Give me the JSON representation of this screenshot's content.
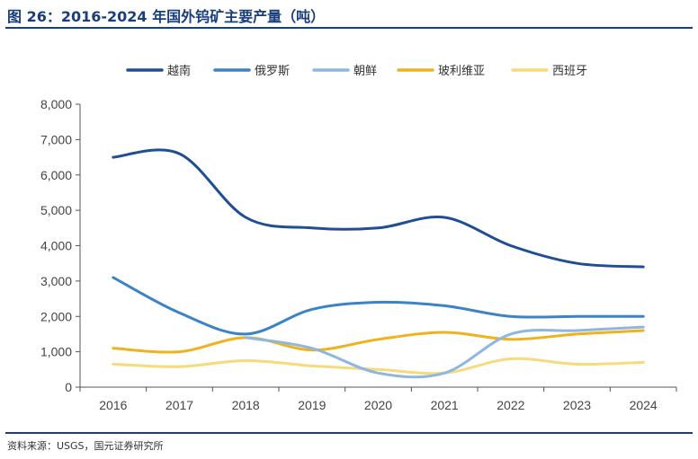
{
  "title": "图 26：2016-2024 年国外钨矿主要产量（吨）",
  "source": "资料来源：USGS，国元证券研究所",
  "colors": {
    "accent": "#1a3e7a"
  },
  "chart_data": {
    "type": "line",
    "title": "图 26：2016-2024 年国外钨矿主要产量（吨）",
    "xlabel": "",
    "ylabel": "",
    "x": [
      "2016",
      "2017",
      "2018",
      "2019",
      "2020",
      "2021",
      "2022",
      "2023",
      "2024"
    ],
    "ylim": [
      0,
      8000
    ],
    "yticks": [
      "0",
      "1,000",
      "2,000",
      "3,000",
      "4,000",
      "5,000",
      "6,000",
      "7,000",
      "8,000"
    ],
    "legend_position": "top",
    "grid": false,
    "smooth": true,
    "series": [
      {
        "name": "越南",
        "color": "#1f4e96",
        "values": [
          6500,
          6600,
          4800,
          4500,
          4500,
          4800,
          4000,
          3500,
          3400
        ]
      },
      {
        "name": "俄罗斯",
        "color": "#3c82c6",
        "values": [
          3100,
          2100,
          1500,
          2200,
          2400,
          2300,
          2000,
          2000,
          2000
        ]
      },
      {
        "name": "朝鲜",
        "color": "#8fb6de",
        "values": [
          null,
          null,
          1400,
          1100,
          400,
          400,
          1500,
          1600,
          1700
        ]
      },
      {
        "name": "玻利维亚",
        "color": "#f0b21c",
        "values": [
          1100,
          1000,
          1400,
          1050,
          1350,
          1550,
          1350,
          1500,
          1600
        ]
      },
      {
        "name": "西班牙",
        "color": "#f7da7a",
        "values": [
          650,
          580,
          750,
          600,
          500,
          400,
          800,
          650,
          700
        ]
      }
    ]
  }
}
